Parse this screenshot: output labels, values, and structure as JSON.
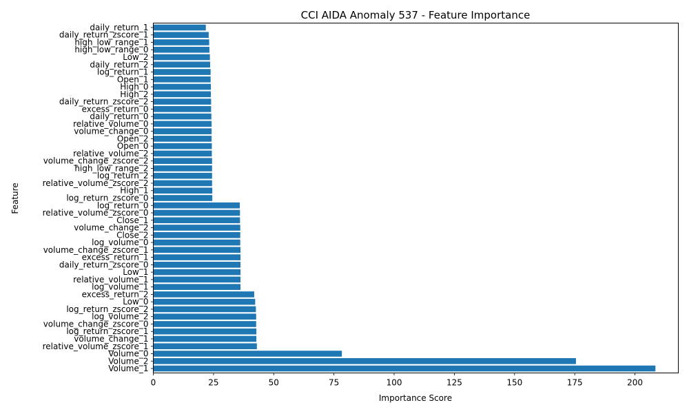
{
  "chart_data": {
    "type": "bar",
    "orientation": "horizontal",
    "title": "CCI AIDA Anomaly 537 - Feature Importance",
    "xlabel": "Importance Score",
    "ylabel": "Feature",
    "xlim": [
      0,
      218
    ],
    "xticks": [
      0,
      25,
      50,
      75,
      100,
      125,
      150,
      175,
      200
    ],
    "grid": false,
    "bar_color": "#1f77b4",
    "categories": [
      "Volume_1",
      "Volume_2",
      "Volume_0",
      "relative_volume_zscore_1",
      "volume_change_1",
      "log_return_zscore_1",
      "volume_change_zscore_0",
      "log_volume_2",
      "log_return_zscore_2",
      "Low_0",
      "excess_return_2",
      "log_volume_1",
      "relative_volume_1",
      "Low_1",
      "daily_return_zscore_0",
      "excess_return_1",
      "volume_change_zscore_1",
      "log_volume_0",
      "Close_2",
      "volume_change_2",
      "Close_1",
      "relative_volume_zscore_0",
      "log_return_0",
      "log_return_zscore_0",
      "High_1",
      "relative_volume_zscore_2",
      "log_return_2",
      "high_low_range_2",
      "volume_change_zscore_2",
      "relative_volume_2",
      "Open_0",
      "Open_2",
      "volume_change_0",
      "relative_volume_0",
      "daily_return_0",
      "excess_return_0",
      "daily_return_zscore_2",
      "High_2",
      "High_0",
      "Open_1",
      "log_return_1",
      "daily_return_2",
      "Low_2",
      "high_low_range_0",
      "high_low_range_1",
      "daily_return_zscore_1",
      "daily_return_1"
    ],
    "values": [
      208.5,
      175.5,
      78.3,
      43.0,
      42.8,
      42.8,
      42.7,
      42.7,
      42.6,
      42.3,
      41.9,
      36.2,
      36.2,
      36.2,
      36.2,
      36.2,
      36.2,
      36.1,
      36.1,
      36.1,
      36.0,
      36.0,
      35.9,
      24.5,
      24.5,
      24.4,
      24.4,
      24.4,
      24.4,
      24.3,
      24.3,
      24.2,
      24.2,
      24.2,
      24.1,
      24.0,
      24.0,
      23.9,
      23.9,
      23.8,
      23.8,
      23.6,
      23.5,
      23.3,
      23.2,
      23.0,
      21.8
    ]
  }
}
